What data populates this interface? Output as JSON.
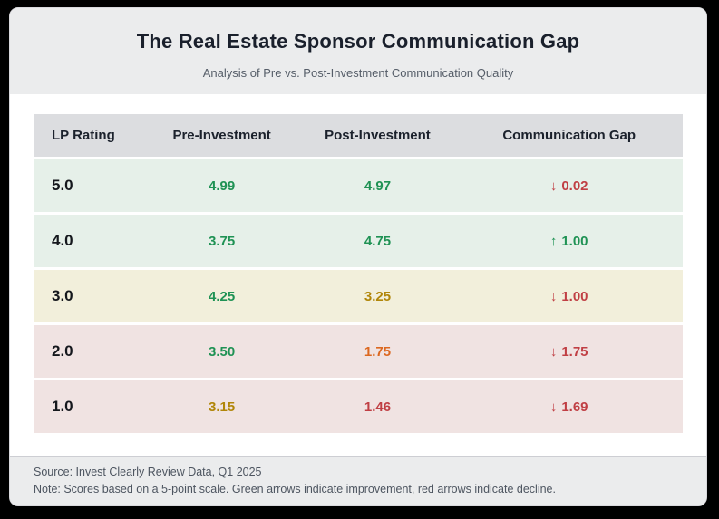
{
  "header": {
    "title": "The Real Estate Sponsor Communication Gap",
    "subtitle": "Analysis of Pre vs. Post-Investment Communication Quality"
  },
  "table": {
    "columns": [
      "LP Rating",
      "Pre-Investment",
      "Post-Investment",
      "Communication Gap"
    ],
    "rows": [
      {
        "rating": "5.0",
        "row_tone": "row-green",
        "pre": {
          "value": "4.99",
          "tone": "green"
        },
        "post": {
          "value": "4.97",
          "tone": "green"
        },
        "gap": {
          "arrow": "↓",
          "direction": "down",
          "value": "0.02",
          "tone": "red"
        }
      },
      {
        "rating": "4.0",
        "row_tone": "row-green",
        "pre": {
          "value": "3.75",
          "tone": "green"
        },
        "post": {
          "value": "4.75",
          "tone": "green"
        },
        "gap": {
          "arrow": "↑",
          "direction": "up",
          "value": "1.00",
          "tone": "green"
        }
      },
      {
        "rating": "3.0",
        "row_tone": "row-yellow",
        "pre": {
          "value": "4.25",
          "tone": "green"
        },
        "post": {
          "value": "3.25",
          "tone": "amber"
        },
        "gap": {
          "arrow": "↓",
          "direction": "down",
          "value": "1.00",
          "tone": "red"
        }
      },
      {
        "rating": "2.0",
        "row_tone": "row-rose",
        "pre": {
          "value": "3.50",
          "tone": "green"
        },
        "post": {
          "value": "1.75",
          "tone": "orange"
        },
        "gap": {
          "arrow": "↓",
          "direction": "down",
          "value": "1.75",
          "tone": "red"
        }
      },
      {
        "rating": "1.0",
        "row_tone": "row-rose",
        "pre": {
          "value": "3.15",
          "tone": "amber"
        },
        "post": {
          "value": "1.46",
          "tone": "red"
        },
        "gap": {
          "arrow": "↓",
          "direction": "down",
          "value": "1.69",
          "tone": "red"
        }
      }
    ]
  },
  "footer": {
    "source": "Source: Invest Clearly Review Data, Q1 2025",
    "note": "Note: Scores based on a 5-point scale. Green arrows indicate improvement, red arrows indicate decline."
  },
  "colors": {
    "positive_green": "#1f9254",
    "caution_amber": "#b18609",
    "warning_orange": "#dc6820",
    "negative_red": "#c03f44",
    "row_green_bg": "#e6f0e9",
    "row_yellow_bg": "#f2efdb",
    "row_rose_bg": "#f0e3e2",
    "header_band_bg": "#ebeced",
    "table_header_bg": "#dcdde0"
  },
  "chart_data": {
    "type": "table",
    "title": "The Real Estate Sponsor Communication Gap",
    "subtitle": "Analysis of Pre vs. Post-Investment Communication Quality",
    "columns": [
      "LP Rating",
      "Pre-Investment",
      "Post-Investment",
      "Communication Gap"
    ],
    "rows": [
      [
        5.0,
        4.99,
        4.97,
        -0.02
      ],
      [
        4.0,
        3.75,
        4.75,
        1.0
      ],
      [
        3.0,
        4.25,
        3.25,
        -1.0
      ],
      [
        2.0,
        3.5,
        1.75,
        -1.75
      ],
      [
        1.0,
        3.15,
        1.46,
        -1.69
      ]
    ],
    "scale": [
      0,
      5
    ],
    "source": "Invest Clearly Review Data, Q1 2025",
    "note": "Scores based on a 5-point scale. Green arrows indicate improvement, red arrows indicate decline."
  }
}
